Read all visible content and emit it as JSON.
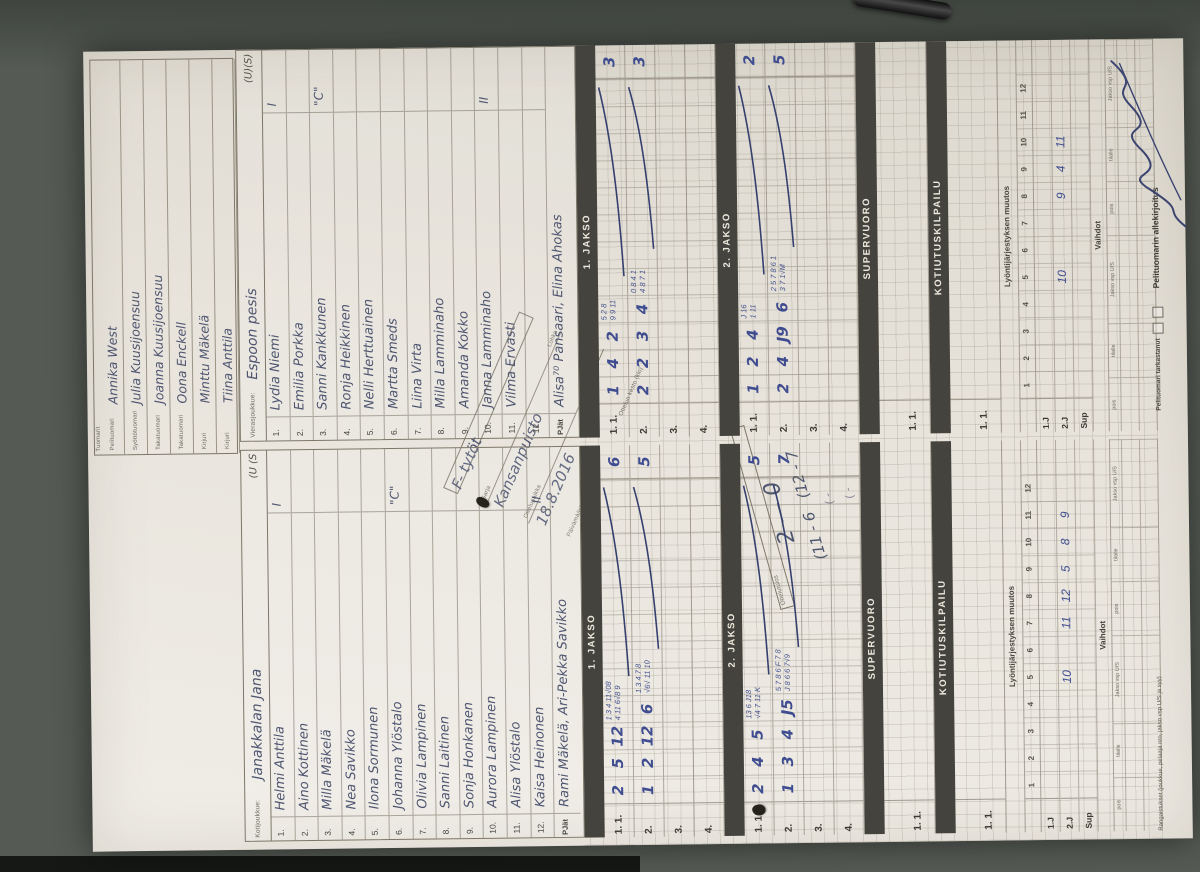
{
  "header": {
    "info": {
      "line1": {
        "value": "F- tytöt",
        "labels": [
          "Sarja",
          "Lohko"
        ]
      },
      "line2": {
        "value": "Kansanpuisto",
        "labels": [
          "Ottelupaikka"
        ]
      },
      "line3": {
        "value": "18.8.2016",
        "labels": [
          "Päivämäärä",
          "Ottelun kesto (klo)"
        ]
      }
    },
    "result": {
      "label": "Ottelutulos",
      "main": "2 — 0",
      "periods": "(11 - 6   (12 - 7",
      "blank1": "( -",
      "blank2": "( -"
    },
    "referees": {
      "label": "Tuomarit",
      "rows": [
        {
          "prefix": "Pelituomari",
          "name": "Annika West"
        },
        {
          "prefix": "Syöttötuomari",
          "name": "Julia Kuusijoensuu"
        },
        {
          "prefix": "Takatuomari",
          "name": "Joanna Kuusijoensuu"
        },
        {
          "prefix": "Takatuomari",
          "name": "Oona Enckell"
        },
        {
          "prefix": "Kirjuri",
          "name": "Minttu Mäkelä"
        },
        {
          "prefix": "Kirjuri",
          "name": "Tiina Anttila"
        }
      ]
    }
  },
  "teams": {
    "home": {
      "label": "Kotijoukkue:",
      "name": "Janakkalan Jana",
      "us_header": "(U (S",
      "pjat_label": "PJät",
      "pjat": "Rami Mäkelä, Ari-Pekka Savikko",
      "players": [
        [
          "1.",
          "Helmi Anttila",
          "I"
        ],
        [
          "2.",
          "Aino Kottinen",
          ""
        ],
        [
          "3.",
          "Milla Mäkelä",
          ""
        ],
        [
          "4.",
          "Nea Savikko",
          ""
        ],
        [
          "5.",
          "Ilona Sormunen",
          ""
        ],
        [
          "6.",
          "Johanna Ylöstalo",
          "\"C\""
        ],
        [
          "7.",
          "Olivia Lampinen",
          ""
        ],
        [
          "8.",
          "Sanni Laitinen",
          ""
        ],
        [
          "9.",
          "Sonja Honkanen",
          ""
        ],
        [
          "10.",
          "Aurora Lampinen",
          ""
        ],
        [
          "11.",
          "Alisa Ylöstalo",
          ""
        ],
        [
          "12.",
          "Kaisa Heinonen",
          "II"
        ]
      ]
    },
    "away": {
      "label": "Vierasjoukkue:",
      "name": "Espoon pesis",
      "us_header": "(U)(S)",
      "pjat_label": "PJät",
      "pjat": "Alisa⁷⁰ Pansaari, Elina Ahokas",
      "players": [
        [
          "1.",
          "Lydia Niemi",
          "I"
        ],
        [
          "2.",
          "Emilia Porkka",
          ""
        ],
        [
          "3.",
          "Sanni Kankkunen",
          "\"C\""
        ],
        [
          "4.",
          "Ronja Heikkinen",
          ""
        ],
        [
          "5.",
          "Nelli Herttuainen",
          ""
        ],
        [
          "6.",
          "Martta Smeds",
          ""
        ],
        [
          "7.",
          "Liina Virta",
          ""
        ],
        [
          "8.",
          "Milla Lamminaho",
          ""
        ],
        [
          "9.",
          "Amanda Kokko",
          ""
        ],
        [
          "10.",
          "Janna Lamminaho",
          "II"
        ],
        [
          "11.",
          "Vilma Ervasti",
          ""
        ],
        [
          "12.",
          "",
          ""
        ]
      ]
    }
  },
  "jaksot": [
    {
      "title": "1. JAKSO",
      "home": [
        {
          "label": "1. 1.",
          "big": [
            "2",
            "5",
            "12"
          ],
          "top": "1 3 4 11√08",
          "bot": "4 11 6√8 9",
          "total": "6",
          "sweep": true
        },
        {
          "label": "2.",
          "big": [
            "1",
            "2",
            "12",
            "6"
          ],
          "top": "1 3 4 7 8",
          "bot": "√6√ 11 10",
          "total": "5",
          "sweep": true
        },
        {
          "label": "3."
        },
        {
          "label": "4."
        }
      ],
      "away": [
        {
          "label": "1. 1.",
          "big": [
            "1",
            "4",
            "2"
          ],
          "top": "5 2 8",
          "bot": "9 9 11",
          "total": "3",
          "sweep": true
        },
        {
          "label": "2.",
          "big": [
            "2",
            "2",
            "3",
            "4"
          ],
          "top": "0 8 4 1",
          "bot": "4 8 7 1",
          "total": "3",
          "sweep": true
        },
        {
          "label": "3."
        },
        {
          "label": "4."
        }
      ]
    },
    {
      "title": "2. JAKSO",
      "home": [
        {
          "label": "1. 1.",
          "big": [
            "2",
            "4",
            "5"
          ],
          "top": "13 6 J18",
          "bot": "√4 7 11 K",
          "total": "5",
          "sweep": true
        },
        {
          "label": "2.",
          "big": [
            "1",
            "3",
            "4",
            "J5"
          ],
          "top": "5 7 8 6 F 7 8",
          "bot": "J 8 6 6 7√9",
          "total": "7",
          "sweep": true
        },
        {
          "label": "3."
        },
        {
          "label": "4."
        }
      ],
      "away": [
        {
          "label": "1. 1.",
          "big": [
            "1",
            "2",
            "4"
          ],
          "top": "J 16",
          "bot": "1 11",
          "total": "2",
          "sweep": true
        },
        {
          "label": "2.",
          "big": [
            "2",
            "4",
            "J9",
            "6"
          ],
          "top": "2 5 7 8 6 1",
          "bot": "3 7 1√M",
          "total": "5",
          "sweep": true
        },
        {
          "label": "3."
        },
        {
          "label": "4."
        }
      ]
    }
  ],
  "supervuoro": {
    "title": "SUPERVUORO",
    "row_label": "1. 1."
  },
  "kotiutuskilpailu": {
    "title": "KOTIUTUSKILPAILU",
    "row_label": "1. 1."
  },
  "batting_change": {
    "title": "Lyöntijärjestyksen muutos",
    "cols": [
      "1",
      "2",
      "3",
      "4",
      "5",
      "6",
      "7",
      "8",
      "9",
      "10",
      "11",
      "12"
    ],
    "rows": [
      "1.J",
      "2.J",
      "Sup"
    ],
    "home_marks": [
      {
        "row": 1,
        "col": 4,
        "val": "10"
      },
      {
        "row": 1,
        "col": 6,
        "val": "11"
      },
      {
        "row": 1,
        "col": 7,
        "val": "12"
      },
      {
        "row": 1,
        "col": 8,
        "val": "5"
      },
      {
        "row": 1,
        "col": 9,
        "val": "8"
      },
      {
        "row": 1,
        "col": 10,
        "val": "9"
      }
    ],
    "away_marks": [
      {
        "row": 1,
        "col": 4,
        "val": "10"
      },
      {
        "row": 1,
        "col": 7,
        "val": "9"
      },
      {
        "row": 1,
        "col": 8,
        "val": "4"
      },
      {
        "row": 1,
        "col": 9,
        "val": "11"
      }
    ]
  },
  "vaihdot": {
    "title": "Vaihdot",
    "sub_labels": [
      "pois",
      "tilalle",
      "Jakso vsp U/S",
      "pois",
      "tilalle",
      "Jakso vsp U/S"
    ]
  },
  "footer": {
    "rangaistukset": "Rangaistukset (joukkue, pelaaja nro, jakso vsp U/S ja syy)",
    "tarkastanut": "Pelituomari tarkastanut",
    "allekirjoitus": "Pelituomarin allekirjoitus"
  }
}
